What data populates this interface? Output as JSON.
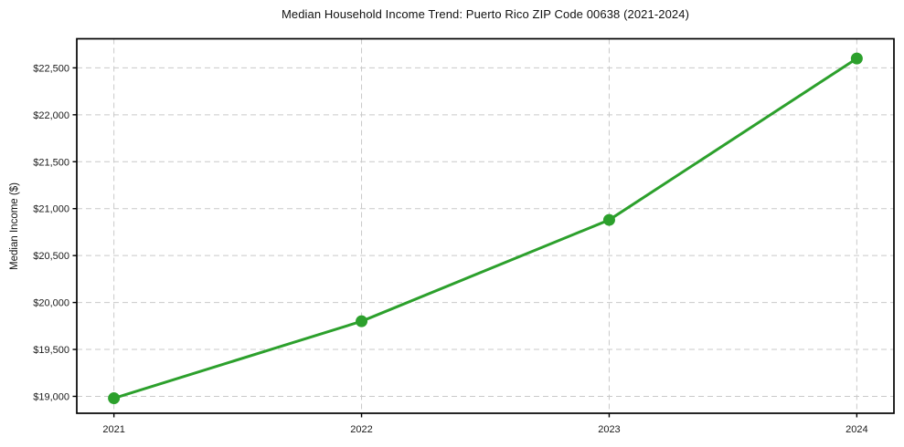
{
  "chart_data": {
    "type": "line",
    "title": "Median Household Income Trend: Puerto Rico ZIP Code 00638 (2021-2024)",
    "ylabel": "Median Income ($)",
    "xlabel": "",
    "x": [
      2021,
      2022,
      2023,
      2024
    ],
    "x_tick_labels": [
      "2021",
      "2022",
      "2023",
      "2024"
    ],
    "series": [
      {
        "name": "Median Household Income",
        "values": [
          18980,
          19800,
          20880,
          22600
        ]
      }
    ],
    "y_ticks": [
      19000,
      19500,
      20000,
      20500,
      21000,
      21500,
      22000,
      22500
    ],
    "y_tick_labels": [
      "$19,000",
      "$19,500",
      "$20,000",
      "$20,500",
      "$21,000",
      "$21,500",
      "$22,000",
      "$22,500"
    ],
    "xlim": [
      2020.85,
      2024.15
    ],
    "ylim": [
      18820,
      22810
    ],
    "grid": true,
    "grid_style": "dashed",
    "legend": false,
    "colors": {
      "line": "#2ca02c",
      "marker": "#2ca02c",
      "grid": "#c9c9c9",
      "spine": "#000000",
      "background": "#ffffff",
      "text": "#1a1a1a"
    }
  }
}
